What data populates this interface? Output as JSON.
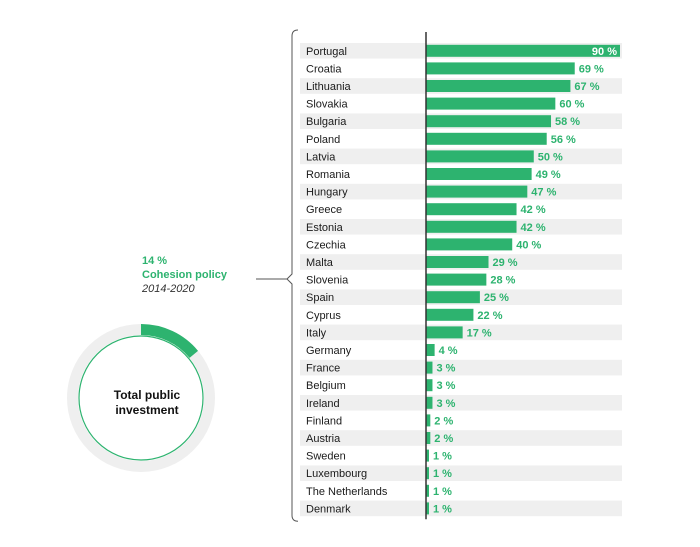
{
  "donut": {
    "center_label_line1": "Total public",
    "center_label_line2": "investment",
    "share": 14,
    "share_label": "14 %",
    "share_name": "Cohesion policy",
    "period": "2014-2020"
  },
  "colors": {
    "accent": "#2db36f",
    "track": "#efefef",
    "row_stripe": "#efefef",
    "axis": "#333333"
  },
  "chart_data": {
    "type": "bar",
    "orientation": "horizontal",
    "categories": [
      "Portugal",
      "Croatia",
      "Lithuania",
      "Slovakia",
      "Bulgaria",
      "Poland",
      "Latvia",
      "Romania",
      "Hungary",
      "Greece",
      "Estonia",
      "Czechia",
      "Malta",
      "Slovenia",
      "Spain",
      "Cyprus",
      "Italy",
      "Germany",
      "France",
      "Belgium",
      "Ireland",
      "Finland",
      "Austria",
      "Sweden",
      "Luxembourg",
      "The Netherlands",
      "Denmark"
    ],
    "values": [
      90,
      69,
      67,
      60,
      58,
      56,
      50,
      49,
      47,
      42,
      42,
      40,
      29,
      28,
      25,
      22,
      17,
      4,
      3,
      3,
      3,
      2,
      2,
      1,
      1,
      1,
      1
    ],
    "value_labels": [
      "90 %",
      "69 %",
      "67 %",
      "60 %",
      "58 %",
      "56 %",
      "50 %",
      "49 %",
      "47 %",
      "42 %",
      "42 %",
      "40 %",
      "29 %",
      "28 %",
      "25 %",
      "22 %",
      "17 %",
      "4 %",
      "3 %",
      "3 %",
      "3 %",
      "2 %",
      "2 %",
      "1 %",
      "1 %",
      "1 %",
      "1 %"
    ],
    "xlim": [
      0,
      90
    ],
    "grid": false,
    "title": "",
    "xlabel": "",
    "ylabel": ""
  }
}
